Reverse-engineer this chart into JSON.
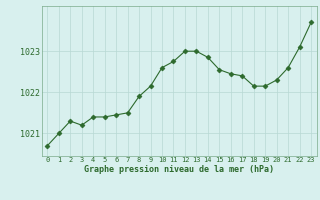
{
  "x": [
    0,
    1,
    2,
    3,
    4,
    5,
    6,
    7,
    8,
    9,
    10,
    11,
    12,
    13,
    14,
    15,
    16,
    17,
    18,
    19,
    20,
    21,
    22,
    23
  ],
  "y": [
    1020.7,
    1021.0,
    1021.3,
    1021.2,
    1021.4,
    1021.4,
    1021.45,
    1021.5,
    1021.9,
    1022.15,
    1022.6,
    1022.75,
    1023.0,
    1023.0,
    1022.85,
    1022.55,
    1022.45,
    1022.4,
    1022.15,
    1022.15,
    1022.3,
    1022.6,
    1023.1,
    1023.7
  ],
  "line_color": "#2d6a2d",
  "marker": "D",
  "marker_size": 2.5,
  "background_color": "#d8f0ee",
  "grid_color": "#b8d8d4",
  "xlabel": "Graphe pression niveau de la mer (hPa)",
  "xlabel_color": "#2d6a2d",
  "tick_color": "#2d6a2d",
  "ylim": [
    1020.45,
    1024.1
  ],
  "yticks": [
    1021,
    1022,
    1023
  ],
  "xlim": [
    -0.5,
    23.5
  ],
  "xticks": [
    0,
    1,
    2,
    3,
    4,
    5,
    6,
    7,
    8,
    9,
    10,
    11,
    12,
    13,
    14,
    15,
    16,
    17,
    18,
    19,
    20,
    21,
    22,
    23
  ]
}
